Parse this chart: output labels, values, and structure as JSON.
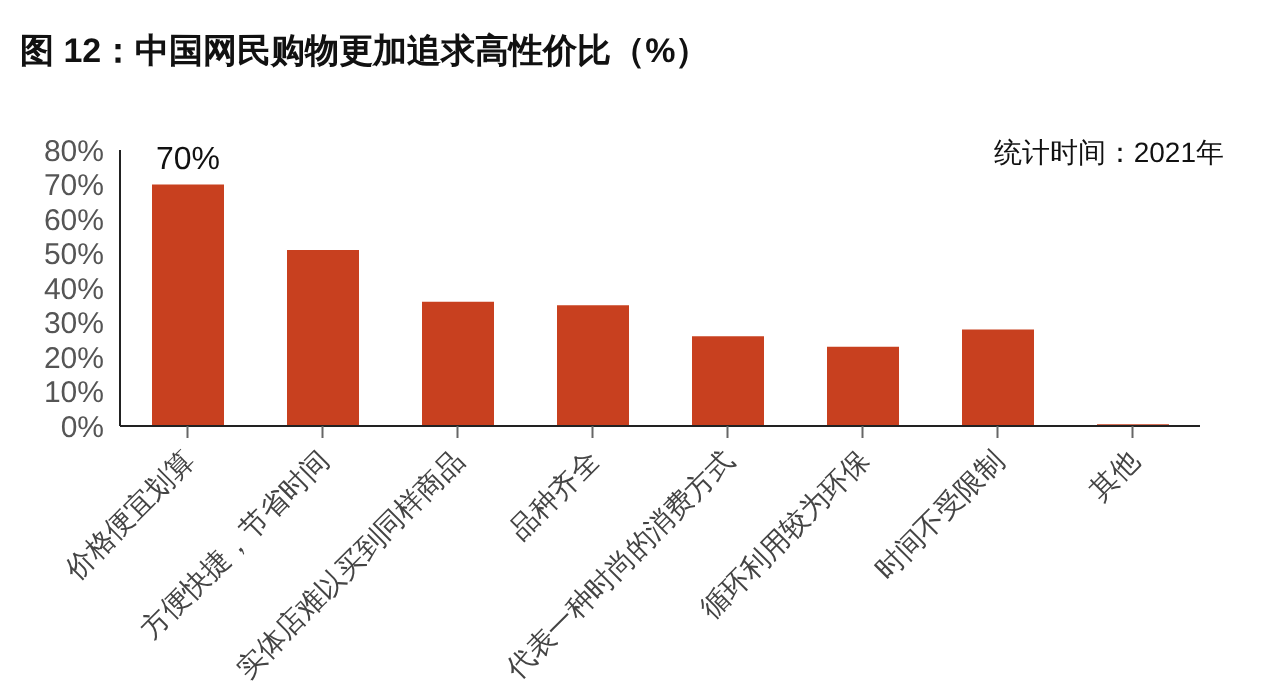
{
  "chart_data": {
    "type": "bar",
    "title": "图 12：中国网民购物更加追求高性价比（%）",
    "annotations": [
      "统计时间：2021年"
    ],
    "categories": [
      "价格便宜划算",
      "方便快捷，节省时间",
      "实体店难以买到同样商品",
      "品种齐全",
      "代表一种时尚的消费方式",
      "循环利用较为环保",
      "时间不受限制",
      "其他"
    ],
    "values": [
      70,
      51,
      36,
      35,
      26,
      23,
      28,
      0.5
    ],
    "value_labels": [
      "70%",
      null,
      null,
      null,
      null,
      null,
      null,
      null
    ],
    "color": "#c8401f",
    "ylim": [
      0,
      80
    ],
    "yticks": [
      {
        "value": 0,
        "label": "0%"
      },
      {
        "value": 10,
        "label": "10%"
      },
      {
        "value": 20,
        "label": "20%"
      },
      {
        "value": 30,
        "label": "30%"
      },
      {
        "value": 40,
        "label": "40%"
      },
      {
        "value": 50,
        "label": "50%"
      },
      {
        "value": 60,
        "label": "60%"
      },
      {
        "value": 70,
        "label": "70%"
      },
      {
        "value": 80,
        "label": "80%"
      }
    ],
    "grid": false
  }
}
